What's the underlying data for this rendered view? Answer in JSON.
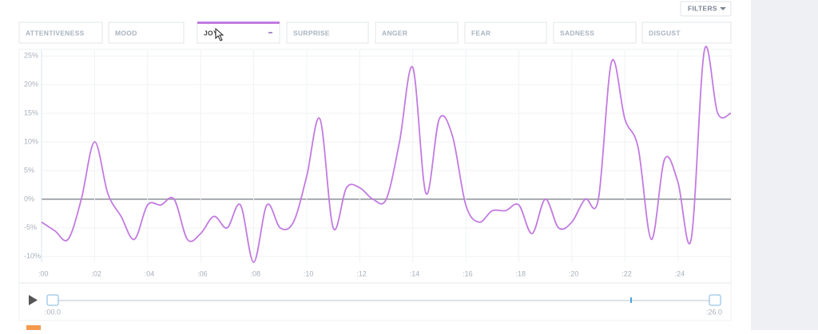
{
  "filters_button": "FILTERS",
  "tabs": [
    "ATTENTIVENESS",
    "MOOD",
    "JOY",
    "SURPRISE",
    "ANGER",
    "FEAR",
    "SADNESS",
    "DISGUST"
  ],
  "chart_data": {
    "type": "line",
    "color": "#c27be0",
    "grid": true,
    "x": [
      0,
      0.5,
      1,
      1.5,
      2,
      2.5,
      3,
      3.5,
      4,
      4.5,
      5,
      5.5,
      6,
      6.5,
      7,
      7.5,
      8,
      8.5,
      9,
      9.5,
      10,
      10.5,
      11,
      11.5,
      12,
      12.5,
      13,
      13.5,
      14,
      14.5,
      15,
      15.5,
      16,
      16.5,
      17,
      17.5,
      18,
      18.5,
      19,
      19.5,
      20,
      20.5,
      21,
      21.5,
      22,
      22.5,
      23,
      23.5,
      24,
      24.5,
      25,
      25.5,
      26
    ],
    "values": [
      -4,
      -5.5,
      -7,
      0,
      10,
      1,
      -3,
      -7,
      -1,
      -1,
      0,
      -7,
      -6,
      -3,
      -5,
      -1,
      -11,
      -1,
      -5,
      -4,
      4,
      14,
      -5,
      2,
      2,
      0,
      0,
      10,
      23,
      1,
      14,
      11,
      -1,
      -4,
      -2,
      -2,
      -1,
      -6,
      0,
      -5,
      -4,
      0,
      0,
      24,
      14,
      9,
      -7,
      7,
      3,
      -7,
      26,
      15,
      15
    ],
    "xlim": [
      0,
      26
    ],
    "ylim": [
      -11,
      26
    ],
    "xticks": [
      {
        "value": 0,
        "label": ":00"
      },
      {
        "value": 2,
        "label": ":02"
      },
      {
        "value": 4,
        "label": ":04"
      },
      {
        "value": 6,
        "label": ":06"
      },
      {
        "value": 8,
        "label": ":08"
      },
      {
        "value": 10,
        "label": ":10"
      },
      {
        "value": 12,
        "label": ":12"
      },
      {
        "value": 14,
        "label": ":14"
      },
      {
        "value": 16,
        "label": ":16"
      },
      {
        "value": 18,
        "label": ":18"
      },
      {
        "value": 20,
        "label": ":20"
      },
      {
        "value": 22,
        "label": ":22"
      },
      {
        "value": 24,
        "label": ":24"
      }
    ],
    "yticks": [
      {
        "value": -10,
        "label": "-10%"
      },
      {
        "value": -5,
        "label": "-5%"
      },
      {
        "value": 0,
        "label": "0%"
      },
      {
        "value": 5,
        "label": "5%"
      },
      {
        "value": 10,
        "label": "10%"
      },
      {
        "value": 15,
        "label": "15%"
      },
      {
        "value": 20,
        "label": "20%"
      },
      {
        "value": 25,
        "label": "25%"
      }
    ]
  },
  "player": {
    "start": ":00.0",
    "end": ":26.0"
  }
}
